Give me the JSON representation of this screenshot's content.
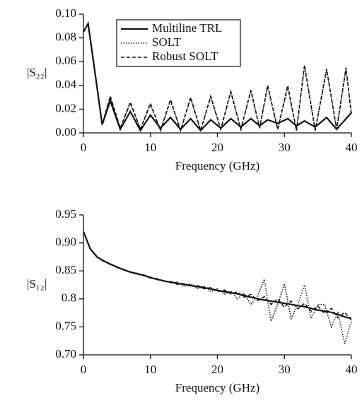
{
  "chart_data": [
    {
      "type": "line",
      "xlabel": "Frequency (GHz)",
      "ylabel": "|S₂₂|",
      "x": [
        0,
        0.7,
        1.5,
        2.8,
        4,
        5.5,
        7,
        8.5,
        10,
        11.5,
        13,
        14.5,
        16,
        17.5,
        19,
        20.5,
        22,
        23.5,
        25,
        26.3,
        27.5,
        29,
        30.5,
        31.8,
        33,
        34.6,
        36.3,
        37.8,
        39.2,
        40
      ],
      "series": [
        {
          "name": "Multiline TRL",
          "color": "#111111",
          "line_style": "solid",
          "values": [
            0.085,
            0.092,
            0.06,
            0.007,
            0.027,
            0.003,
            0.018,
            0.002,
            0.015,
            0.004,
            0.013,
            0.003,
            0.012,
            0.002,
            0.011,
            0.004,
            0.012,
            0.005,
            0.012,
            0.006,
            0.011,
            0.008,
            0.012,
            0.006,
            0.01,
            0.005,
            0.013,
            0.003,
            0.012,
            0.017
          ]
        },
        {
          "name": "SOLT",
          "color": "#111111",
          "line_style": "dotted",
          "values": [
            0.085,
            0.092,
            0.06,
            0.007,
            0.03,
            0.004,
            0.025,
            0.003,
            0.024,
            0.002,
            0.027,
            0.002,
            0.029,
            0.002,
            0.03,
            0.003,
            0.034,
            0.003,
            0.035,
            0.004,
            0.039,
            0.003,
            0.038,
            0.002,
            0.056,
            0.002,
            0.053,
            0.003,
            0.054,
            0.016
          ]
        },
        {
          "name": "Robust SOLT",
          "color": "#111111",
          "line_style": "dashed",
          "values": [
            0.085,
            0.092,
            0.06,
            0.007,
            0.031,
            0.004,
            0.026,
            0.003,
            0.025,
            0.002,
            0.028,
            0.002,
            0.03,
            0.002,
            0.031,
            0.003,
            0.035,
            0.003,
            0.036,
            0.004,
            0.04,
            0.003,
            0.04,
            0.002,
            0.057,
            0.002,
            0.054,
            0.003,
            0.055,
            0.015
          ]
        }
      ],
      "xlim": [
        0,
        40
      ],
      "ylim": [
        0,
        0.1
      ],
      "xticks": [
        0,
        10,
        20,
        30,
        40
      ],
      "yticks": [
        {
          "value": 0,
          "label": "0.00"
        },
        0.02,
        0.04,
        0.06,
        0.08,
        {
          "value": 0.1,
          "label": "0.10"
        }
      ],
      "legend": "upper center"
    },
    {
      "type": "line",
      "xlabel": "Frequency (GHz)",
      "ylabel": "|S₁₂|",
      "x": [
        0,
        1,
        2,
        3,
        4,
        5,
        6,
        7,
        8,
        9,
        10,
        11,
        12,
        13,
        14,
        15,
        16,
        17,
        18,
        19,
        20,
        21,
        22,
        23,
        24,
        25,
        26,
        27,
        28,
        29,
        30,
        31,
        32,
        33,
        34,
        35,
        36,
        37,
        38,
        39,
        40
      ],
      "series": [
        {
          "name": "Multiline TRL",
          "color": "#111111",
          "line_style": "solid",
          "values": [
            0.92,
            0.89,
            0.875,
            0.868,
            0.862,
            0.857,
            0.852,
            0.848,
            0.845,
            0.842,
            0.838,
            0.835,
            0.832,
            0.83,
            0.828,
            0.826,
            0.824,
            0.822,
            0.82,
            0.818,
            0.815,
            0.813,
            0.811,
            0.809,
            0.806,
            0.803,
            0.8,
            0.798,
            0.796,
            0.794,
            0.792,
            0.79,
            0.788,
            0.786,
            0.783,
            0.78,
            0.778,
            0.776,
            0.772,
            0.768,
            0.765
          ]
        },
        {
          "name": "SOLT",
          "color": "#111111",
          "line_style": "dotted",
          "values": [
            0.92,
            0.89,
            0.876,
            0.867,
            0.863,
            0.856,
            0.853,
            0.847,
            0.846,
            0.841,
            0.839,
            0.834,
            0.833,
            0.828,
            0.83,
            0.822,
            0.827,
            0.818,
            0.823,
            0.813,
            0.818,
            0.808,
            0.814,
            0.8,
            0.81,
            0.79,
            0.805,
            0.835,
            0.76,
            0.79,
            0.827,
            0.765,
            0.79,
            0.825,
            0.765,
            0.79,
            0.79,
            0.75,
            0.775,
            0.72,
            0.76
          ]
        },
        {
          "name": "Robust SOLT",
          "color": "#111111",
          "line_style": "dashed",
          "values": [
            0.92,
            0.89,
            0.875,
            0.867,
            0.863,
            0.856,
            0.852,
            0.848,
            0.844,
            0.843,
            0.837,
            0.836,
            0.831,
            0.831,
            0.826,
            0.827,
            0.822,
            0.824,
            0.818,
            0.82,
            0.813,
            0.816,
            0.809,
            0.812,
            0.803,
            0.808,
            0.797,
            0.804,
            0.79,
            0.8,
            0.785,
            0.796,
            0.782,
            0.792,
            0.778,
            0.787,
            0.774,
            0.783,
            0.766,
            0.776,
            0.762
          ]
        }
      ],
      "xlim": [
        0,
        40
      ],
      "ylim": [
        0.7,
        0.95
      ],
      "xticks": [
        0,
        10,
        20,
        30,
        40
      ],
      "yticks": [
        0.95,
        {
          "value": 0.9,
          "label": "0.90"
        },
        0.85,
        0.8,
        0.75,
        {
          "value": 0.7,
          "label": "0.70"
        }
      ]
    }
  ]
}
